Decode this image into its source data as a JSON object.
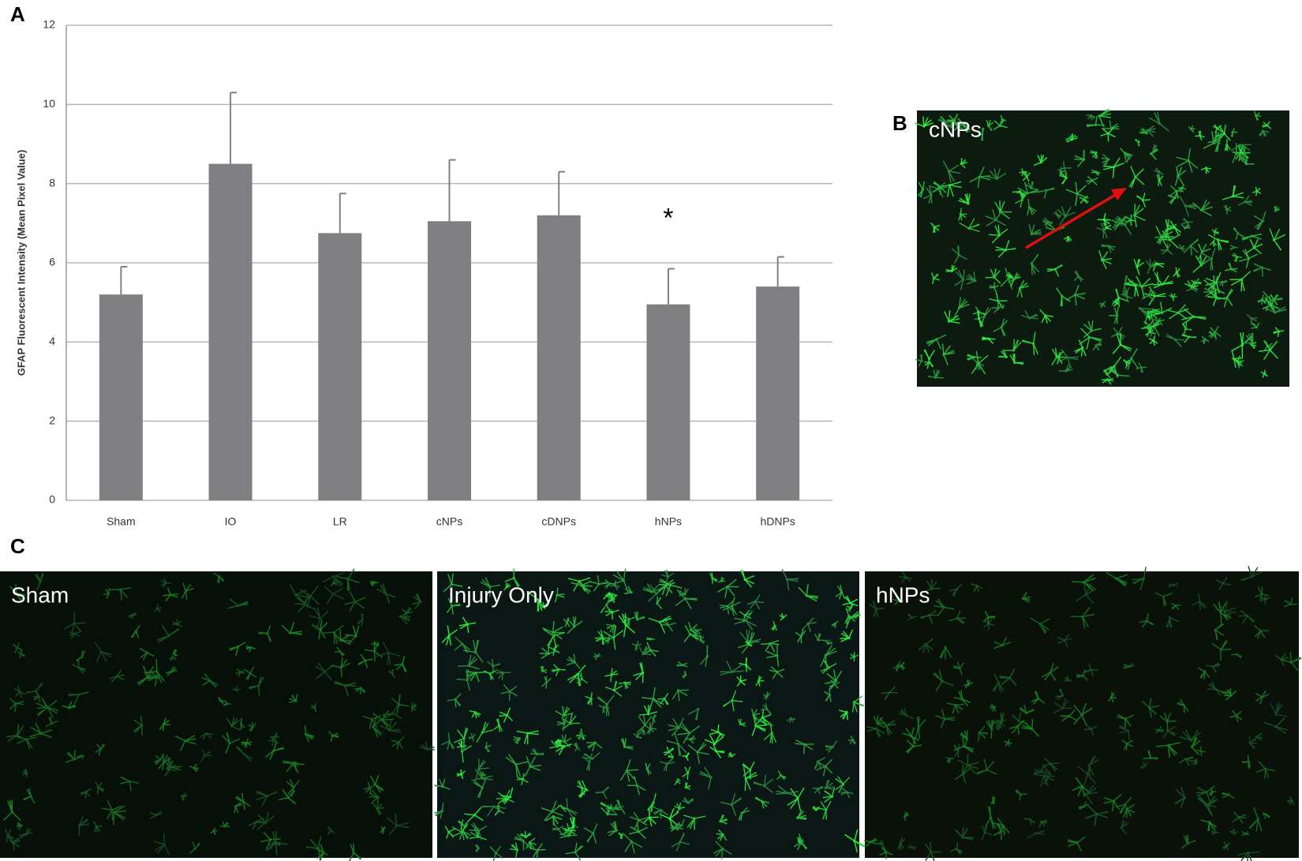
{
  "chart_data": {
    "type": "bar",
    "panel_label": "A",
    "ylabel": "GFAP Fluorescent Intensity (Mean Pixel Value)",
    "categories": [
      "Sham",
      "IO",
      "LR",
      "cNPs",
      "cDNPs",
      "hNPs",
      "hDNPs"
    ],
    "values": [
      5.2,
      8.5,
      6.75,
      7.05,
      7.2,
      4.95,
      5.4
    ],
    "errors": [
      0.7,
      1.8,
      1.0,
      1.55,
      1.1,
      0.9,
      0.75
    ],
    "color": "#808083",
    "ylim": [
      0,
      12
    ],
    "yticks": [
      0,
      2,
      4,
      6,
      8,
      10,
      12
    ],
    "grid": true,
    "annotations": [
      {
        "text": "*",
        "category": 5
      }
    ]
  },
  "panel_b": {
    "label": "B",
    "caption": "cNPs"
  },
  "panel_c": {
    "label": "C",
    "images": [
      "Sham",
      "Injury Only",
      "hNPs"
    ]
  }
}
